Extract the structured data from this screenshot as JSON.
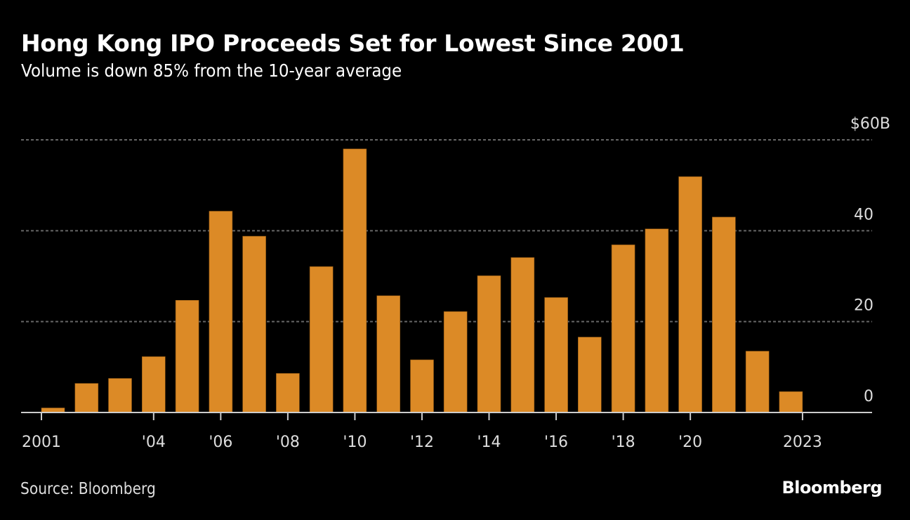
{
  "header": {
    "title": "Hong Kong IPO Proceeds Set for Lowest Since 2001",
    "subtitle": "Volume is down 85% from the 10-year average"
  },
  "footer": {
    "source": "Source: Bloomberg",
    "logo": "Bloomberg"
  },
  "colors": {
    "bar": "#dc8a26",
    "background": "#000000",
    "gridline": "#666666",
    "axis": "#cccccc",
    "text": "#dddddd"
  },
  "chart_data": {
    "type": "bar",
    "title": "Hong Kong IPO Proceeds Set for Lowest Since 2001",
    "subtitle": "Volume is down 85% from the 10-year average",
    "xlabel": "",
    "ylabel": "",
    "unit": "$B",
    "categories": [
      "2001",
      "2002",
      "2003",
      "2004",
      "2005",
      "2006",
      "2007",
      "2008",
      "2009",
      "2010",
      "2011",
      "2012",
      "2013",
      "2014",
      "2015",
      "2016",
      "2017",
      "2018",
      "2019",
      "2020",
      "2021",
      "2022",
      "2023"
    ],
    "values": [
      1.0,
      6.4,
      7.5,
      12.3,
      24.7,
      44.3,
      38.8,
      8.6,
      32.1,
      58.0,
      25.7,
      11.6,
      22.2,
      30.1,
      34.1,
      25.3,
      16.6,
      36.9,
      40.4,
      51.9,
      43.0,
      13.5,
      4.6
    ],
    "ylim": [
      0,
      60
    ],
    "y_ticks": [
      {
        "value": 0,
        "label": "0"
      },
      {
        "value": 20,
        "label": "20"
      },
      {
        "value": 40,
        "label": "40"
      },
      {
        "value": 60,
        "label": "$60B"
      }
    ],
    "x_ticks": [
      {
        "year": "2001",
        "label": "2001",
        "anchor": "start"
      },
      {
        "year": "2004",
        "label": "'04",
        "anchor": "center"
      },
      {
        "year": "2006",
        "label": "'06",
        "anchor": "center"
      },
      {
        "year": "2008",
        "label": "'08",
        "anchor": "center"
      },
      {
        "year": "2010",
        "label": "'10",
        "anchor": "center"
      },
      {
        "year": "2012",
        "label": "'12",
        "anchor": "center"
      },
      {
        "year": "2014",
        "label": "'14",
        "anchor": "center"
      },
      {
        "year": "2016",
        "label": "'16",
        "anchor": "center"
      },
      {
        "year": "2018",
        "label": "'18",
        "anchor": "center"
      },
      {
        "year": "2020",
        "label": "'20",
        "anchor": "center"
      },
      {
        "year": "2023",
        "label": "2023",
        "anchor": "end"
      }
    ],
    "grid": true,
    "y_axis_position": "right",
    "legend": "none"
  }
}
